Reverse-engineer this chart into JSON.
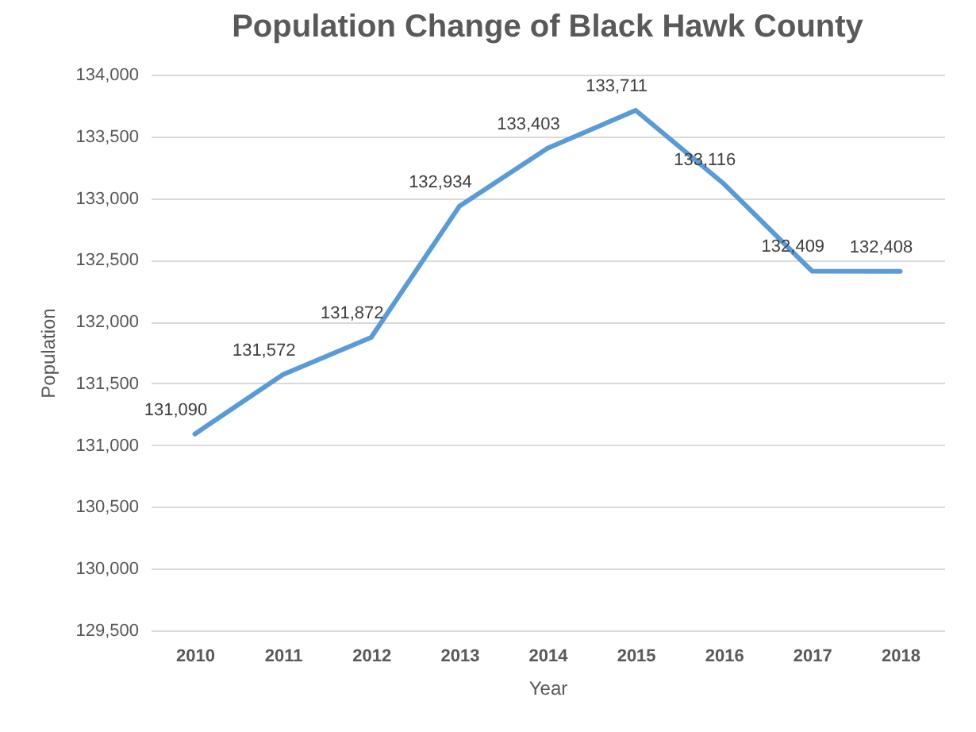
{
  "chart_data": {
    "type": "line",
    "title": "Population Change of Black Hawk County",
    "xlabel": "Year",
    "ylabel": "Population",
    "categories": [
      "2010",
      "2011",
      "2012",
      "2013",
      "2014",
      "2015",
      "2016",
      "2017",
      "2018"
    ],
    "series": [
      {
        "color": "#5b9bd5",
        "values": [
          131090,
          131572,
          131872,
          132934,
          133403,
          133711,
          133116,
          132409,
          132408
        ],
        "value_labels": [
          "131,090",
          "131,572",
          "131,872",
          "132,934",
          "133,403",
          "133,711",
          "133,116",
          "132,409",
          "132,408"
        ]
      }
    ],
    "ylim": [
      129500,
      134000
    ],
    "yticks": [
      {
        "value": 129500,
        "label": "129,500"
      },
      {
        "value": 130000,
        "label": "130,000"
      },
      {
        "value": 130500,
        "label": "130,500"
      },
      {
        "value": 131000,
        "label": "131,000"
      },
      {
        "value": 131500,
        "label": "131,500"
      },
      {
        "value": 132000,
        "label": "132,000"
      },
      {
        "value": 132500,
        "label": "132,500"
      },
      {
        "value": 133000,
        "label": "133,000"
      },
      {
        "value": 133500,
        "label": "133,500"
      },
      {
        "value": 134000,
        "label": "134,000"
      }
    ],
    "grid": "y"
  }
}
